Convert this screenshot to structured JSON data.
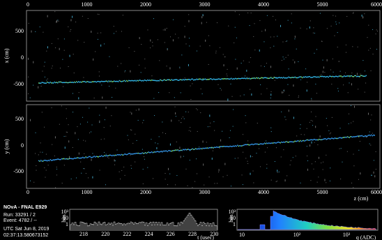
{
  "event_display": {
    "xz_view": {
      "y_axis_label": "x (cm)",
      "y_ticks": [
        "500",
        "0",
        "-500"
      ]
    },
    "yz_view": {
      "y_axis_label": "y (cm)",
      "y_ticks": [
        "500",
        "0",
        "-500"
      ]
    },
    "z_ticks": [
      "0",
      "1000",
      "2000",
      "3000",
      "4000",
      "5000",
      "6000"
    ],
    "z_axis_label": "z (cm)"
  },
  "info": {
    "title": "NOvA - FNAL E929",
    "run": "Run:  33291 / 2",
    "event": "Event: 4782 / --",
    "date": "UTC Sat Jun 8, 2019",
    "time": "02:37:13.580673152"
  },
  "timing_histogram": {
    "y_label": "hits",
    "y_ticks": [
      "10³",
      "10",
      "1"
    ],
    "x_ticks": [
      "218",
      "220",
      "222",
      "224",
      "226",
      "228",
      "230"
    ],
    "x_label": "t (usec)"
  },
  "charge_histogram": {
    "y_label": "hits",
    "y_ticks": [
      "10³",
      "10",
      "1"
    ],
    "x_ticks": [
      "10",
      "10²",
      "10³"
    ],
    "x_label": "q (ADC)"
  }
}
